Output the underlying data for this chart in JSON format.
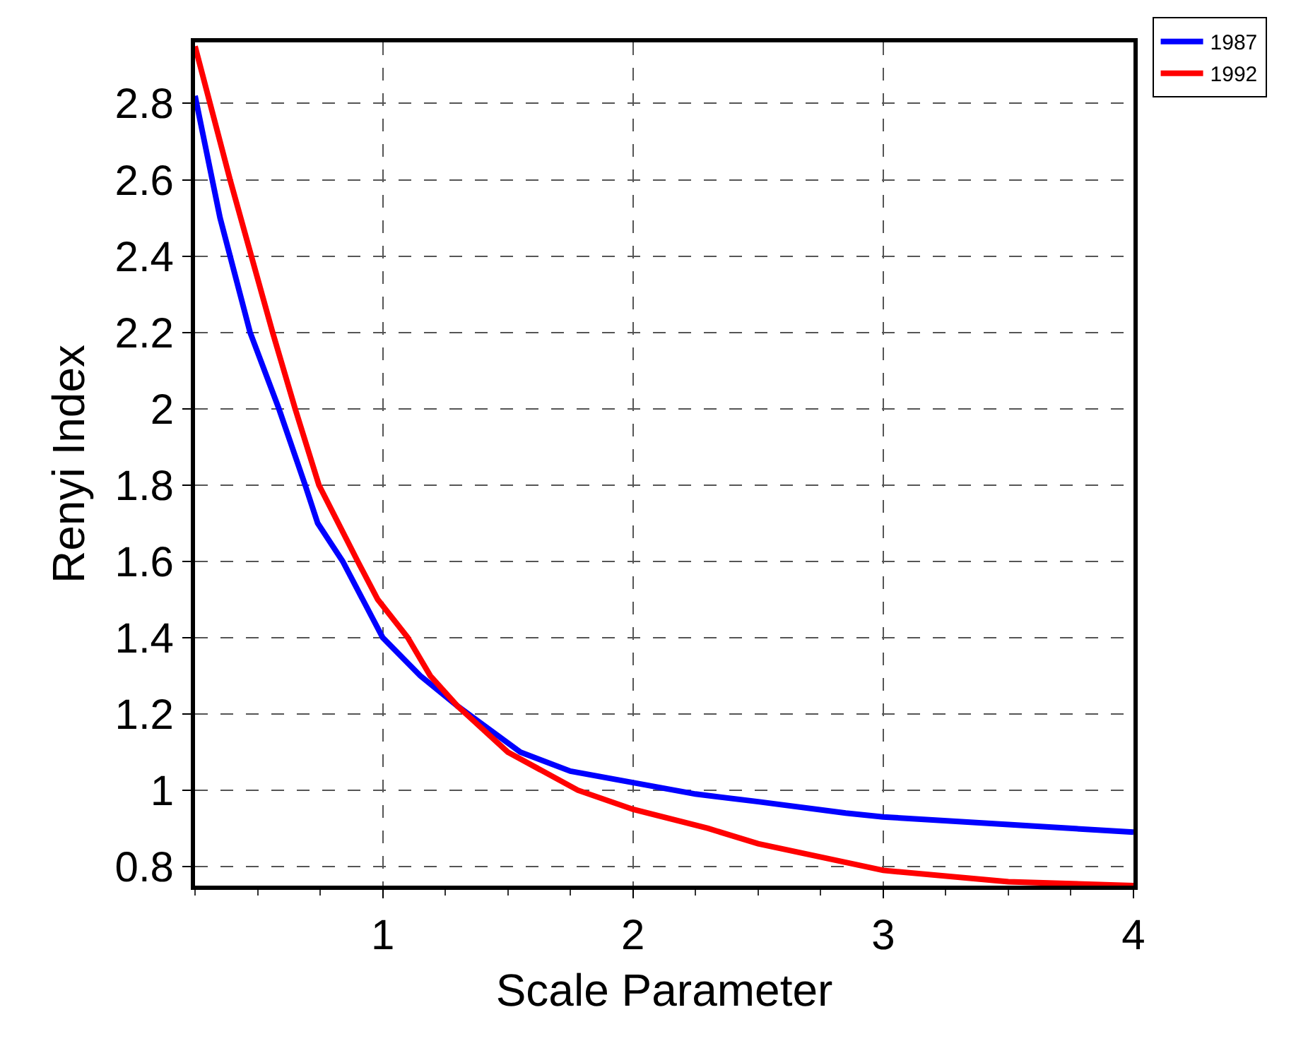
{
  "chart_data": {
    "type": "line",
    "xlabel": "Scale Parameter",
    "ylabel": "Renyi Index",
    "xlim": [
      0.25,
      4
    ],
    "xticks": [
      1,
      2,
      3,
      4
    ],
    "ylim": [
      0.75,
      2.96
    ],
    "yticks": [
      0.8,
      1,
      1.2,
      1.4,
      1.6,
      1.8,
      2,
      2.2,
      2.4,
      2.6,
      2.8
    ],
    "grid": true,
    "legend": "top right",
    "marker": "none",
    "line_style": "solid",
    "series": [
      {
        "name": "1987",
        "color": "#0000ff",
        "x": [
          0.25,
          0.35,
          0.47,
          0.585,
          0.69,
          0.74,
          0.84,
          1.0,
          1.15,
          1.3,
          1.55,
          1.75,
          2.0,
          2.25,
          2.5,
          2.85,
          3.0,
          3.5,
          4.0
        ],
        "values": [
          2.82,
          2.5,
          2.2,
          2.0,
          1.8,
          1.7,
          1.6,
          1.4,
          1.3,
          1.22,
          1.1,
          1.05,
          1.02,
          0.99,
          0.97,
          0.94,
          0.93,
          0.91,
          0.89
        ]
      },
      {
        "name": "1992",
        "color": "#ff0000",
        "x": [
          0.25,
          0.39,
          0.56,
          0.65,
          0.745,
          0.9,
          0.98,
          1.1,
          1.19,
          1.3,
          1.5,
          1.78,
          2.0,
          2.3,
          2.5,
          3.0,
          3.5,
          4.0
        ],
        "values": [
          2.95,
          2.6,
          2.2,
          2.0,
          1.8,
          1.6,
          1.5,
          1.4,
          1.3,
          1.22,
          1.1,
          1.0,
          0.95,
          0.9,
          0.86,
          0.79,
          0.76,
          0.75
        ]
      }
    ]
  }
}
